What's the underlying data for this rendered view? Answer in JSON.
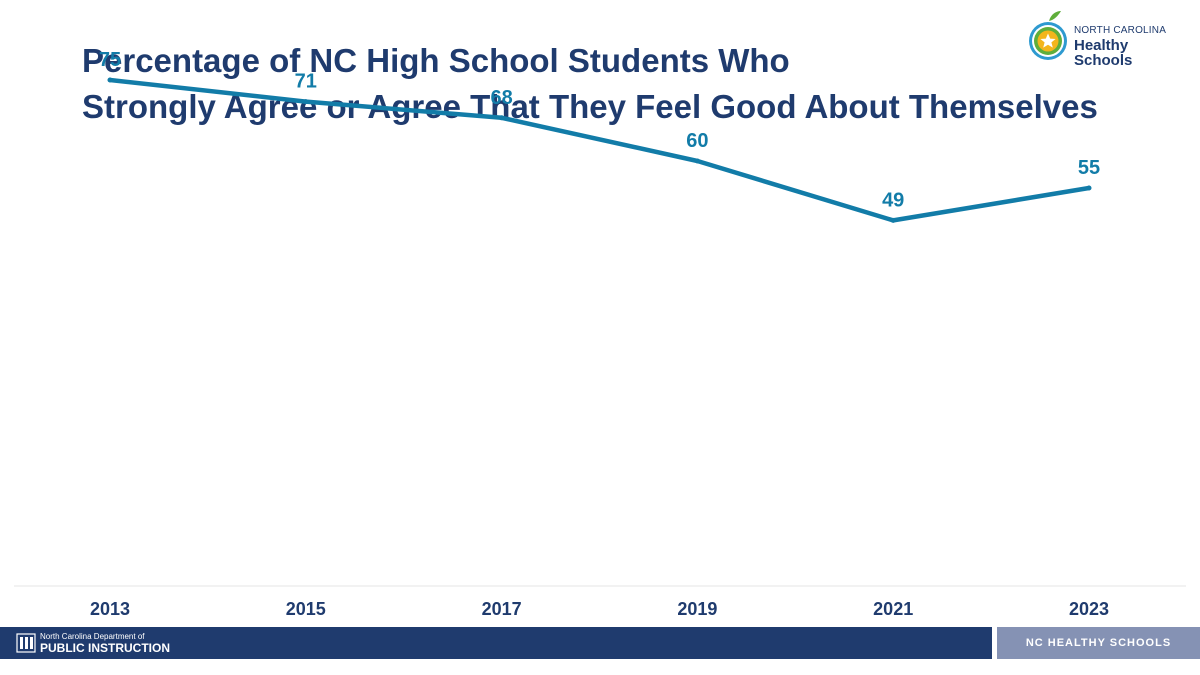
{
  "title": {
    "line1": "Percentage of NC High School Students Who",
    "line2": "Strongly Agree or Agree That They Feel Good About Themselves"
  },
  "logo": {
    "line1": "NORTH CAROLINA",
    "line2": "Healthy Schools",
    "icon": "apple-star-icon"
  },
  "chart_data": {
    "type": "line",
    "title": "Percentage of NC High School Students Who Strongly Agree or Agree That They Feel Good About Themselves",
    "x": [
      "2013",
      "2015",
      "2017",
      "2019",
      "2021",
      "2023"
    ],
    "series": [
      {
        "values": [
          75,
          71,
          68,
          60,
          49,
          55
        ]
      }
    ],
    "xlabel": "",
    "ylabel": "",
    "grid": false,
    "legend": "none",
    "line_color": "#127ca8"
  },
  "footer": {
    "dept_small": "North Carolina Department of",
    "dept_big": "PUBLIC INSTRUCTION",
    "right_label": "NC HEALTHY SCHOOLS"
  },
  "colors": {
    "title": "#1f3b6e",
    "line": "#127ca8",
    "footer_left": "#1f3b6e",
    "footer_right": "#8592b4"
  }
}
